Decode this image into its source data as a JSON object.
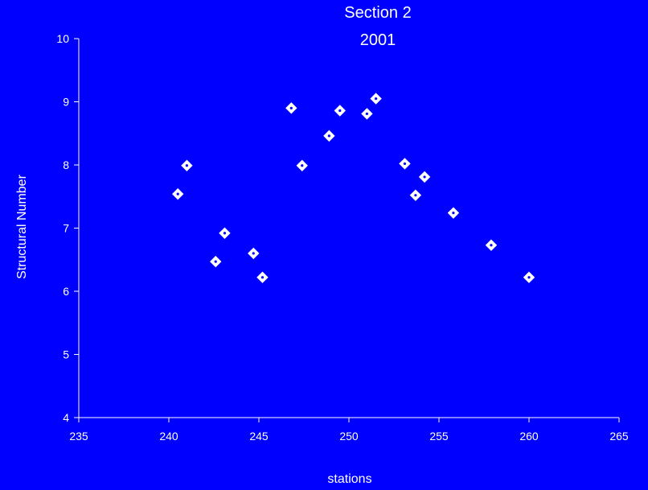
{
  "chart_data": {
    "type": "scatter",
    "title": [
      "Section 2",
      "2001"
    ],
    "xlabel": "stations",
    "ylabel": "Structural Number",
    "xlim": [
      235,
      265
    ],
    "ylim": [
      4,
      10
    ],
    "xticks": [
      235,
      240,
      245,
      250,
      255,
      260,
      265
    ],
    "yticks": [
      4,
      5,
      6,
      7,
      8,
      9,
      10
    ],
    "grid": false,
    "legend": "none",
    "colors": {
      "background": "#0000ff",
      "foreground": "#ffffff"
    },
    "marker": "diamond",
    "series": [
      {
        "points": [
          {
            "x": 240.5,
            "y": 7.54
          },
          {
            "x": 241.0,
            "y": 7.99
          },
          {
            "x": 242.6,
            "y": 6.47
          },
          {
            "x": 243.1,
            "y": 6.92
          },
          {
            "x": 244.7,
            "y": 6.6
          },
          {
            "x": 245.2,
            "y": 6.22
          },
          {
            "x": 246.8,
            "y": 8.9
          },
          {
            "x": 247.4,
            "y": 7.99
          },
          {
            "x": 248.9,
            "y": 8.46
          },
          {
            "x": 249.5,
            "y": 8.86
          },
          {
            "x": 251.0,
            "y": 8.81
          },
          {
            "x": 251.5,
            "y": 9.05
          },
          {
            "x": 253.1,
            "y": 8.02
          },
          {
            "x": 253.7,
            "y": 7.52
          },
          {
            "x": 254.2,
            "y": 7.81
          },
          {
            "x": 255.8,
            "y": 7.24
          },
          {
            "x": 257.9,
            "y": 6.73
          },
          {
            "x": 260.0,
            "y": 6.22
          }
        ]
      }
    ]
  }
}
